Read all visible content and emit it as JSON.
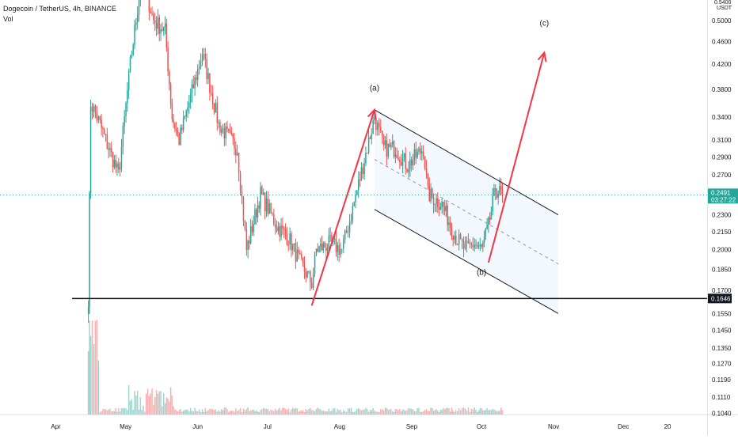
{
  "header": {
    "symbol": "Dogecoin / TetherUS, 4h, BINANCE",
    "volume_label": "Vol"
  },
  "colors": {
    "up": "#26a69a",
    "down": "#ef5350",
    "drawing": "#f23645",
    "channel_line": "#131722",
    "channel_fill": "#f2f8fd",
    "current_price_line": "#26a69a",
    "support_line": "#131722",
    "axis_text": "#131722"
  },
  "chart_data": {
    "type": "candlestick",
    "scale": "log",
    "x_axis": {
      "labels": [
        "Apr",
        "May",
        "Jun",
        "Jul",
        "Aug",
        "Sep",
        "Oct",
        "Nov",
        "Dec",
        "20"
      ],
      "label_dates": [
        "2021-04-01",
        "2021-05-01",
        "2021-06-01",
        "2021-07-01",
        "2021-08-01",
        "2021-09-01",
        "2021-10-01",
        "2021-11-01",
        "2021-12-01",
        "2021-12-20"
      ],
      "range": [
        "2021-03-08",
        "2022-01-06"
      ]
    },
    "y_axis": {
      "currency": "USDT",
      "ticks": [
        0.5,
        0.46,
        0.42,
        0.38,
        0.34,
        0.31,
        0.29,
        0.27,
        0.23,
        0.215,
        0.2,
        0.185,
        0.17,
        0.155,
        0.145,
        0.135,
        0.127,
        0.119,
        0.111,
        0.104
      ],
      "tick_labels": [
        "0.5000",
        "0.4600",
        "0.4200",
        "0.3800",
        "0.3400",
        "0.3100",
        "0.2900",
        "0.2700",
        "0.2300",
        "0.2150",
        "0.2000",
        "0.1850",
        "0.1700",
        "0.1550",
        "0.1450",
        "0.1350",
        "0.1270",
        "0.1190",
        "0.1110",
        "0.1040"
      ],
      "top_partial_label": "0.5400",
      "range": [
        0.1035,
        0.543
      ]
    },
    "price_anchors": [
      [
        "2021-04-15",
        0.165
      ],
      [
        "2021-04-16",
        0.36
      ],
      [
        "2021-04-20",
        0.33
      ],
      [
        "2021-04-28",
        0.27
      ],
      [
        "2021-05-03",
        0.42
      ],
      [
        "2021-05-08",
        0.6
      ],
      [
        "2021-05-13",
        0.5
      ],
      [
        "2021-05-18",
        0.48
      ],
      [
        "2021-05-21",
        0.34
      ],
      [
        "2021-05-24",
        0.31
      ],
      [
        "2021-06-01",
        0.41
      ],
      [
        "2021-06-03",
        0.44
      ],
      [
        "2021-06-10",
        0.33
      ],
      [
        "2021-06-18",
        0.3
      ],
      [
        "2021-06-22",
        0.2
      ],
      [
        "2021-06-28",
        0.25
      ],
      [
        "2021-07-05",
        0.22
      ],
      [
        "2021-07-10",
        0.21
      ],
      [
        "2021-07-15",
        0.19
      ],
      [
        "2021-07-20",
        0.175
      ],
      [
        "2021-07-22",
        0.2
      ],
      [
        "2021-07-28",
        0.205
      ],
      [
        "2021-08-02",
        0.2
      ],
      [
        "2021-08-06",
        0.23
      ],
      [
        "2021-08-11",
        0.28
      ],
      [
        "2021-08-16",
        0.34
      ],
      [
        "2021-08-20",
        0.3
      ],
      [
        "2021-08-25",
        0.3
      ],
      [
        "2021-08-30",
        0.28
      ],
      [
        "2021-09-06",
        0.3
      ],
      [
        "2021-09-08",
        0.25
      ],
      [
        "2021-09-14",
        0.24
      ],
      [
        "2021-09-20",
        0.21
      ],
      [
        "2021-09-24",
        0.2
      ],
      [
        "2021-09-28",
        0.205
      ],
      [
        "2021-10-01",
        0.2
      ],
      [
        "2021-10-04",
        0.22
      ],
      [
        "2021-10-07",
        0.255
      ],
      [
        "2021-10-10",
        0.2491
      ]
    ],
    "last_price": 0.2491,
    "last_price_label": "0.2491",
    "countdown": "03:27:22",
    "support_level": 0.1646,
    "support_label": "0.1646",
    "drawings": {
      "impulse_up": [
        [
          "2021-07-20",
          0.16
        ],
        [
          "2021-08-16",
          0.35
        ]
      ],
      "move_to_c": [
        [
          "2021-10-04",
          0.19
        ],
        [
          "2021-10-28",
          0.44
        ]
      ],
      "channel_upper": [
        [
          "2021-08-16",
          0.35
        ],
        [
          "2021-11-03",
          0.23
        ]
      ],
      "channel_lower": [
        [
          "2021-08-16",
          0.235
        ],
        [
          "2021-11-03",
          0.155
        ]
      ],
      "channel_mid": [
        [
          "2021-08-16",
          0.287
        ],
        [
          "2021-11-03",
          0.189
        ]
      ],
      "support_line_start": "2021-04-08"
    },
    "wave_labels": [
      {
        "text": "(a)",
        "date": "2021-08-16",
        "price": 0.378
      },
      {
        "text": "(b)",
        "date": "2021-10-01",
        "price": 0.181
      },
      {
        "text": "(c)",
        "date": "2021-10-28",
        "price": 0.49
      }
    ]
  }
}
